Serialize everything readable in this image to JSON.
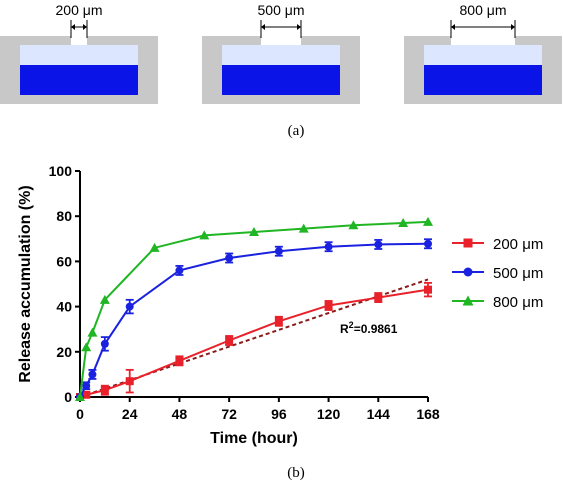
{
  "panel_a": {
    "caption": "(a)",
    "schematics": [
      {
        "width_label": "200 μm",
        "opening_um": 200
      },
      {
        "width_label": "500 μm",
        "opening_um": 500
      },
      {
        "width_label": "800 μm",
        "opening_um": 800
      }
    ],
    "colors": {
      "frame": "#c8c8c8",
      "cavity": "#dde6ff",
      "fill": "#0a14e6"
    }
  },
  "panel_b": {
    "caption": "(b)"
  },
  "chart_data": {
    "type": "line",
    "xlabel": "Time (hour)",
    "ylabel": "Release accumulation (%)",
    "xlim": [
      0,
      168
    ],
    "ylim": [
      0,
      100
    ],
    "xticks": [
      0,
      24,
      48,
      72,
      96,
      120,
      144,
      168
    ],
    "yticks": [
      0,
      20,
      40,
      60,
      80,
      100
    ],
    "grid": false,
    "legend_position": "right",
    "annotation": {
      "prefix": "R",
      "superscript": "2",
      "suffix": "=0.9861",
      "x": 120,
      "y": 30
    },
    "series": [
      {
        "name": "200 μm",
        "color": "#e8212a",
        "marker": "square",
        "x": [
          0,
          3,
          12,
          24,
          48,
          72,
          96,
          120,
          144,
          168
        ],
        "y": [
          0,
          1,
          3,
          7,
          16,
          25,
          33.5,
          40.5,
          44,
          47.5
        ],
        "err": [
          0,
          1,
          2,
          5,
          2,
          2,
          2,
          2,
          2,
          3
        ]
      },
      {
        "name": "500 μm",
        "color": "#1a22e0",
        "marker": "circle",
        "x": [
          0,
          3,
          6,
          12,
          24,
          48,
          72,
          96,
          120,
          144,
          168
        ],
        "y": [
          0,
          5,
          10,
          23.5,
          40,
          56,
          61.5,
          64.5,
          66.5,
          67.5,
          67.8
        ],
        "err": [
          0,
          1.5,
          2,
          3,
          3,
          2,
          2,
          2,
          2,
          2,
          2
        ]
      },
      {
        "name": "800 μm",
        "color": "#1fb523",
        "marker": "triangle",
        "x": [
          0,
          3,
          6,
          12,
          36,
          60,
          84,
          108,
          132,
          156,
          168
        ],
        "y": [
          0,
          22,
          28.5,
          43,
          66,
          71.5,
          73,
          74.5,
          76,
          77,
          77.5
        ],
        "err": [
          0,
          0.5,
          0.5,
          0.5,
          0.5,
          0.5,
          0.5,
          0.5,
          0.5,
          0.5,
          0.5
        ]
      }
    ],
    "fit_line": {
      "series": "200 μm",
      "x": [
        0,
        168
      ],
      "y": [
        0,
        52
      ],
      "color": "#8b1a1a",
      "style": "dashed"
    }
  }
}
